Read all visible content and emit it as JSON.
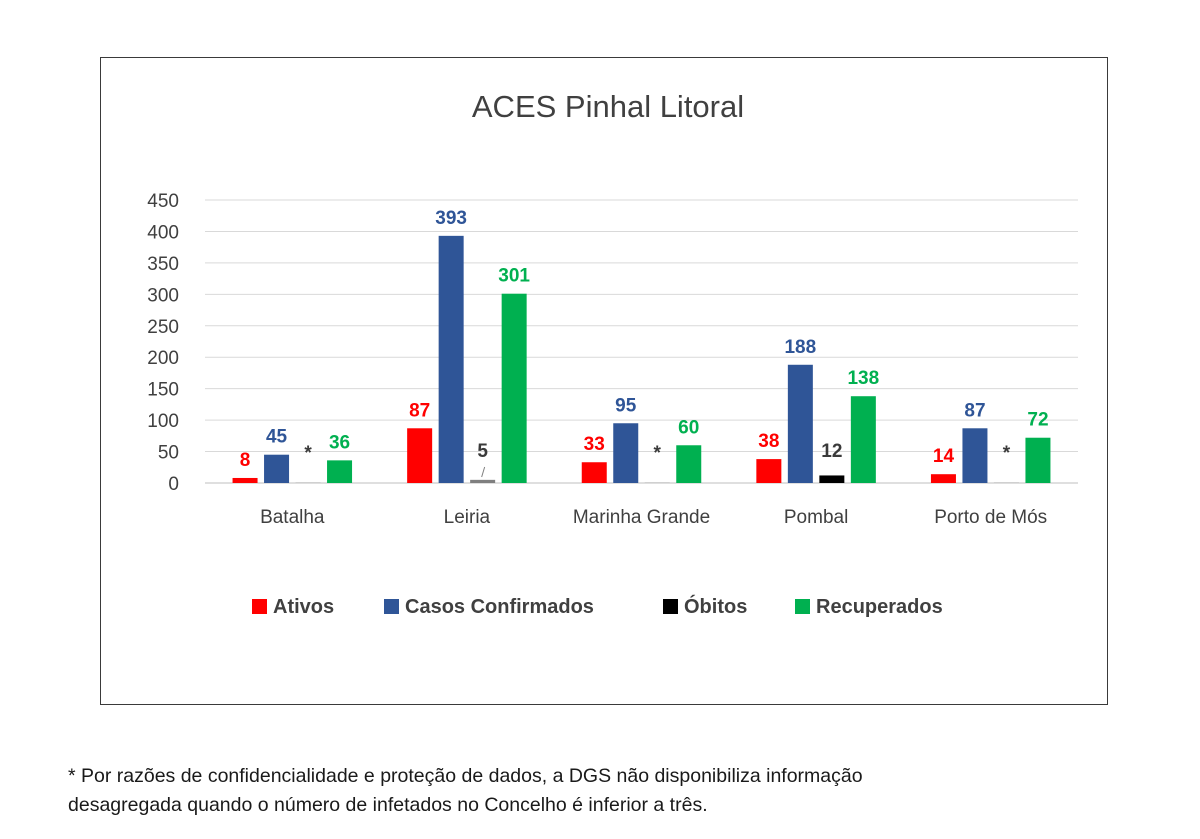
{
  "chart_data": {
    "type": "bar",
    "title": "ACES Pinhal Litoral",
    "categories": [
      "Batalha",
      "Leiria",
      "Marinha Grande",
      "Pombal",
      "Porto de Mós"
    ],
    "ylim": [
      0,
      450
    ],
    "yticks": [
      0,
      50,
      100,
      150,
      200,
      250,
      300,
      350,
      400,
      450
    ],
    "grid": true,
    "legend_position": "bottom",
    "series": [
      {
        "name": "Ativos",
        "color": "#ff0000",
        "label_color": "#ff0000",
        "values": [
          8,
          87,
          33,
          38,
          14
        ],
        "labels": [
          "8",
          "87",
          "33",
          "38",
          "14"
        ]
      },
      {
        "name": "Casos Confirmados",
        "color": "#2f5597",
        "label_color": "#2f5597",
        "values": [
          45,
          393,
          95,
          188,
          87
        ],
        "labels": [
          "45",
          "393",
          "95",
          "188",
          "87"
        ]
      },
      {
        "name": "Óbitos",
        "color": "#000000",
        "label_color": "#3a3a3a",
        "values": [
          1,
          5,
          1,
          12,
          1
        ],
        "labels": [
          "*",
          "5",
          "*",
          "12",
          "*"
        ]
      },
      {
        "name": "Recuperados",
        "color": "#00b050",
        "label_color": "#00b050",
        "values": [
          36,
          301,
          60,
          138,
          72
        ],
        "labels": [
          "36",
          "301",
          "60",
          "138",
          "72"
        ]
      }
    ]
  },
  "footnote": {
    "line1": "* Por razões de confidencialidade e proteção de dados, a DGS não disponibiliza informação",
    "line2": "desagregada quando o número de infetados no Concelho é inferior a três."
  }
}
